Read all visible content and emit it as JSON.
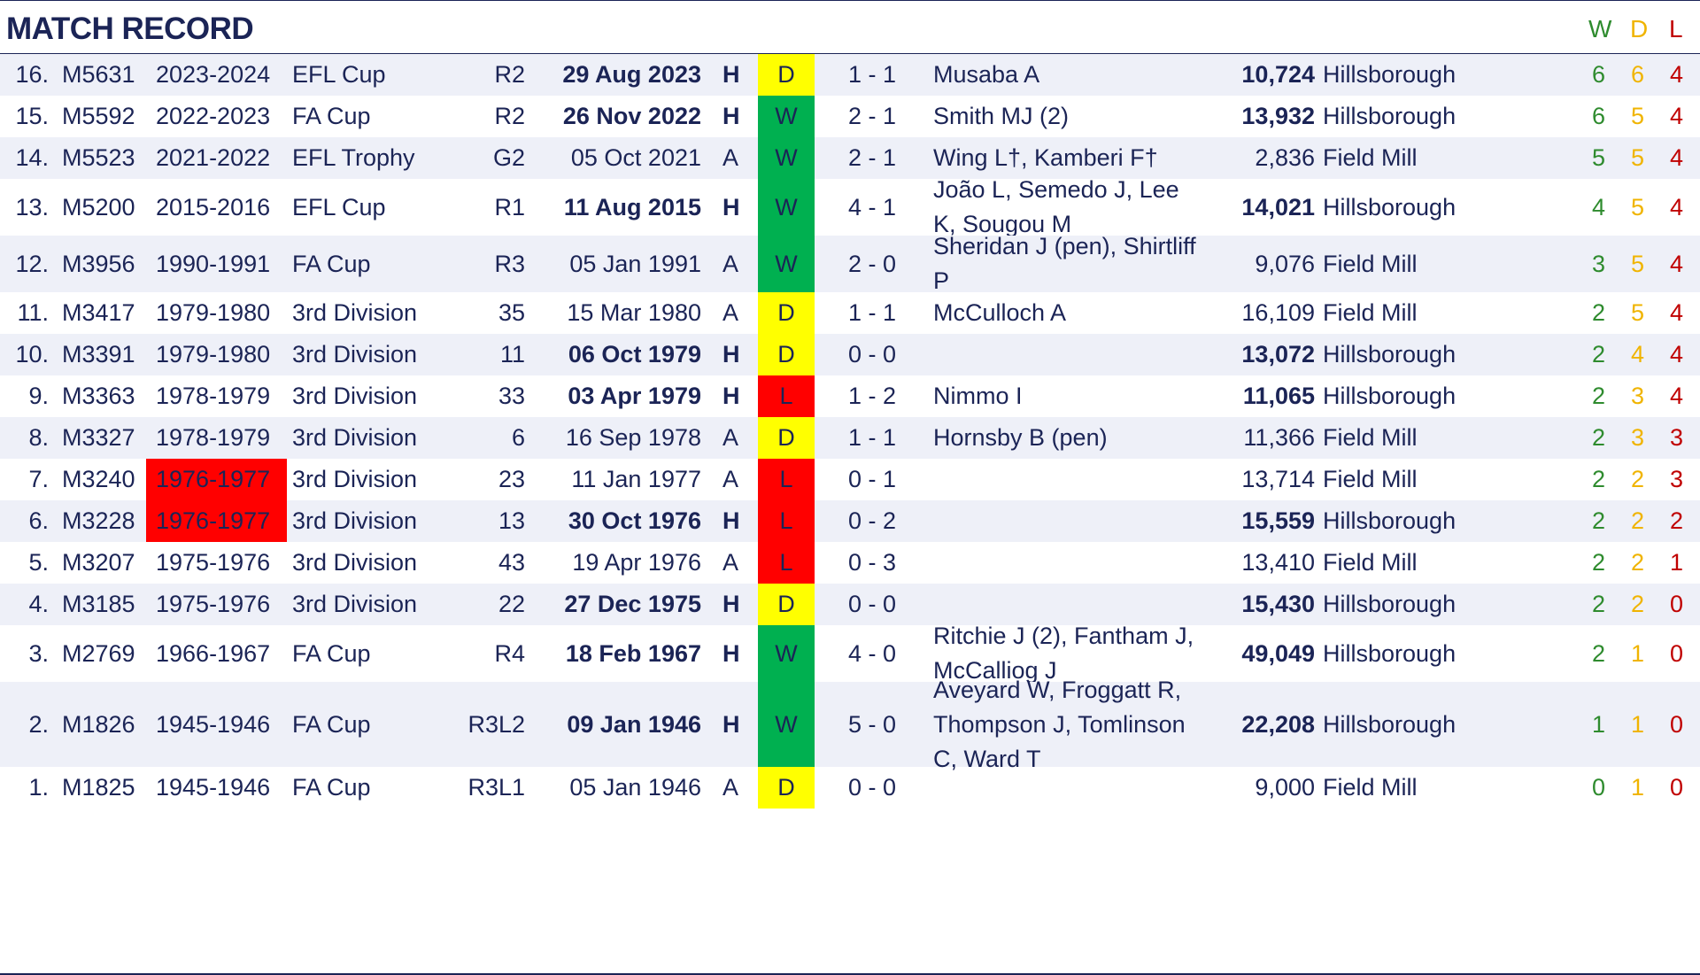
{
  "header": {
    "title": "MATCH RECORD",
    "col_w": "W",
    "col_d": "D",
    "col_l": "L"
  },
  "colors": {
    "win": "#00b050",
    "draw": "#ffff00",
    "loss": "#ff0000",
    "navy": "#1b2456"
  },
  "matches": [
    {
      "num": "16.",
      "code": "M5631",
      "season": "2023-2024",
      "comp": "EFL Cup",
      "round": "R2",
      "date": "29 Aug 2023",
      "venue": "H",
      "result": "D",
      "score": "1 - 1",
      "scorers": "Musaba A",
      "attendance": "10,724",
      "ground": "Hillsborough",
      "w": "6",
      "d": "6",
      "l": "4"
    },
    {
      "num": "15.",
      "code": "M5592",
      "season": "2022-2023",
      "comp": "FA Cup",
      "round": "R2",
      "date": "26 Nov 2022",
      "venue": "H",
      "result": "W",
      "score": "2 - 1",
      "scorers": "Smith MJ (2)",
      "attendance": "13,932",
      "ground": "Hillsborough",
      "w": "6",
      "d": "5",
      "l": "4"
    },
    {
      "num": "14.",
      "code": "M5523",
      "season": "2021-2022",
      "comp": "EFL Trophy",
      "round": "G2",
      "date": "05 Oct 2021",
      "venue": "A",
      "result": "W",
      "score": "2 - 1",
      "scorers": "Wing L†, Kamberi F†",
      "attendance": "2,836",
      "ground": "Field Mill",
      "w": "5",
      "d": "5",
      "l": "4"
    },
    {
      "num": "13.",
      "code": "M5200",
      "season": "2015-2016",
      "comp": "EFL Cup",
      "round": "R1",
      "date": "11 Aug 2015",
      "venue": "H",
      "result": "W",
      "score": "4 - 1",
      "scorers": "João L, Semedo J, Lee K, Sougou M",
      "attendance": "14,021",
      "ground": "Hillsborough",
      "w": "4",
      "d": "5",
      "l": "4"
    },
    {
      "num": "12.",
      "code": "M3956",
      "season": "1990-1991",
      "comp": "FA Cup",
      "round": "R3",
      "date": "05 Jan 1991",
      "venue": "A",
      "result": "W",
      "score": "2 - 0",
      "scorers": "Sheridan J (pen), Shirtliff P",
      "attendance": "9,076",
      "ground": "Field Mill",
      "w": "3",
      "d": "5",
      "l": "4"
    },
    {
      "num": "11.",
      "code": "M3417",
      "season": "1979-1980",
      "comp": "3rd Division",
      "round": "35",
      "date": "15 Mar 1980",
      "venue": "A",
      "result": "D",
      "score": "1 - 1",
      "scorers": "McCulloch A",
      "attendance": "16,109",
      "ground": "Field Mill",
      "w": "2",
      "d": "5",
      "l": "4"
    },
    {
      "num": "10.",
      "code": "M3391",
      "season": "1979-1980",
      "comp": "3rd Division",
      "round": "11",
      "date": "06 Oct 1979",
      "venue": "H",
      "result": "D",
      "score": "0 - 0",
      "scorers": "",
      "attendance": "13,072",
      "ground": "Hillsborough",
      "w": "2",
      "d": "4",
      "l": "4"
    },
    {
      "num": "9.",
      "code": "M3363",
      "season": "1978-1979",
      "comp": "3rd Division",
      "round": "33",
      "date": "03 Apr 1979",
      "venue": "H",
      "result": "L",
      "score": "1 - 2",
      "scorers": "Nimmo I",
      "attendance": "11,065",
      "ground": "Hillsborough",
      "w": "2",
      "d": "3",
      "l": "4"
    },
    {
      "num": "8.",
      "code": "M3327",
      "season": "1978-1979",
      "comp": "3rd Division",
      "round": "6",
      "date": "16 Sep 1978",
      "venue": "A",
      "result": "D",
      "score": "1 - 1",
      "scorers": "Hornsby B (pen)",
      "attendance": "11,366",
      "ground": "Field Mill",
      "w": "2",
      "d": "3",
      "l": "3"
    },
    {
      "num": "7.",
      "code": "M3240",
      "season": "1976-1977",
      "comp": "3rd Division",
      "round": "23",
      "date": "11 Jan 1977",
      "venue": "A",
      "result": "L",
      "score": "0 - 1",
      "scorers": "",
      "attendance": "13,714",
      "ground": "Field Mill",
      "w": "2",
      "d": "2",
      "l": "3"
    },
    {
      "num": "6.",
      "code": "M3228",
      "season": "1976-1977",
      "comp": "3rd Division",
      "round": "13",
      "date": "30 Oct 1976",
      "venue": "H",
      "result": "L",
      "score": "0 - 2",
      "scorers": "",
      "attendance": "15,559",
      "ground": "Hillsborough",
      "w": "2",
      "d": "2",
      "l": "2"
    },
    {
      "num": "5.",
      "code": "M3207",
      "season": "1975-1976",
      "comp": "3rd Division",
      "round": "43",
      "date": "19 Apr 1976",
      "venue": "A",
      "result": "L",
      "score": "0 - 3",
      "scorers": "",
      "attendance": "13,410",
      "ground": "Field Mill",
      "w": "2",
      "d": "2",
      "l": "1"
    },
    {
      "num": "4.",
      "code": "M3185",
      "season": "1975-1976",
      "comp": "3rd Division",
      "round": "22",
      "date": "27 Dec 1975",
      "venue": "H",
      "result": "D",
      "score": "0 - 0",
      "scorers": "",
      "attendance": "15,430",
      "ground": "Hillsborough",
      "w": "2",
      "d": "2",
      "l": "0"
    },
    {
      "num": "3.",
      "code": "M2769",
      "season": "1966-1967",
      "comp": "FA Cup",
      "round": "R4",
      "date": "18 Feb 1967",
      "venue": "H",
      "result": "W",
      "score": "4 - 0",
      "scorers": "Ritchie J (2), Fantham J, McCalliog J",
      "attendance": "49,049",
      "ground": "Hillsborough",
      "w": "2",
      "d": "1",
      "l": "0"
    },
    {
      "num": "2.",
      "code": "M1826",
      "season": "1945-1946",
      "comp": "FA Cup",
      "round": "R3L2",
      "date": "09 Jan 1946",
      "venue": "H",
      "result": "W",
      "score": "5 - 0",
      "scorers": "Aveyard W, Froggatt R, Thompson J, Tomlinson C, Ward T",
      "attendance": "22,208",
      "ground": "Hillsborough",
      "w": "1",
      "d": "1",
      "l": "0"
    },
    {
      "num": "1.",
      "code": "M1825",
      "season": "1945-1946",
      "comp": "FA Cup",
      "round": "R3L1",
      "date": "05 Jan 1946",
      "venue": "A",
      "result": "D",
      "score": "0 - 0",
      "scorers": "",
      "attendance": "9,000",
      "ground": "Field Mill",
      "w": "0",
      "d": "1",
      "l": "0"
    }
  ]
}
